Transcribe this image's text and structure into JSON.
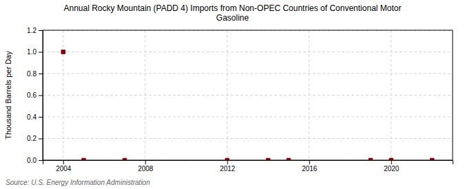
{
  "chart_data": {
    "type": "scatter",
    "title": "Annual Rocky Mountain (PADD 4) Imports from Non-OPEC Countries of Conventional Motor\nGasoline",
    "y_label": "Thousand Barrels per Day",
    "annotations": [
      "Source: U.S. Energy Information Administration"
    ],
    "x": [
      2004,
      2005,
      2007,
      2012,
      2014,
      2015,
      2019,
      2020,
      2022
    ],
    "values": [
      1.0,
      0.0,
      0.0,
      0.0,
      0.0,
      0.0,
      0.0,
      0.0,
      0.0
    ],
    "color": "#8b0000",
    "marker": "square",
    "xlim": [
      2003,
      2023
    ],
    "xticks": [
      2004,
      2008,
      2012,
      2016,
      2020
    ],
    "ylim": [
      0,
      1.2
    ],
    "yticks": [
      {
        "value": 0,
        "label": "0.0"
      },
      0.2,
      0.4,
      0.6,
      0.8,
      {
        "value": 1,
        "label": "1.0"
      },
      1.2
    ],
    "grid": true
  }
}
